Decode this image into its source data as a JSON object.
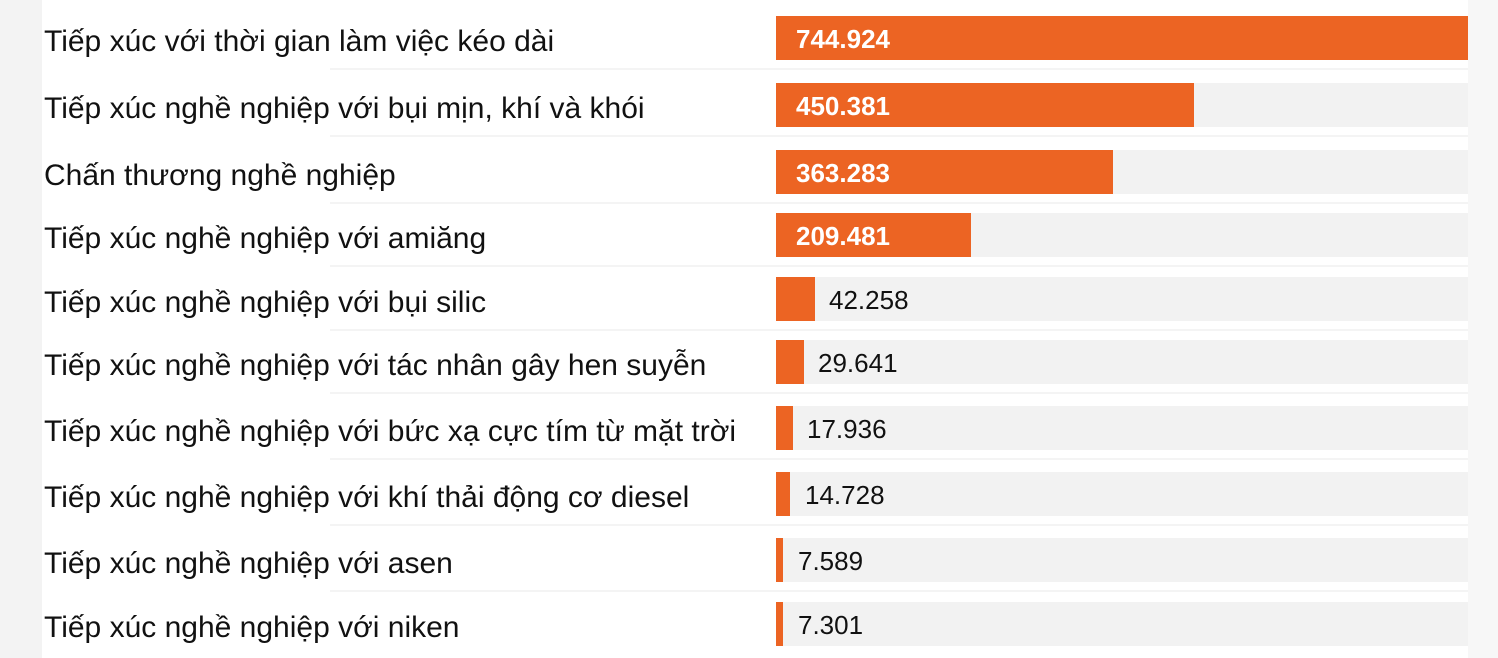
{
  "chart_data": {
    "type": "bar",
    "orientation": "horizontal",
    "categories": [
      "Tiếp xúc với thời gian làm việc kéo dài",
      "Tiếp xúc nghề nghiệp với bụi mịn, khí và khói",
      "Chấn thương nghề nghiệp",
      "Tiếp xúc nghề nghiệp với amiăng",
      "Tiếp xúc nghề nghiệp với bụi silic",
      "Tiếp xúc nghề nghiệp với tác nhân gây hen suyễn",
      "Tiếp xúc nghề nghiệp với bức xạ cực tím từ mặt trời",
      "Tiếp xúc nghề nghiệp với khí thải động cơ diesel",
      "Tiếp xúc nghề nghiệp với asen",
      "Tiếp xúc nghề nghiệp với niken"
    ],
    "values": [
      744924,
      450381,
      363283,
      209481,
      42258,
      29641,
      17936,
      14728,
      7589,
      7301
    ],
    "value_labels": [
      "744.924",
      "450.381",
      "363.283",
      "209.481",
      "42.258",
      "29.641",
      "17.936",
      "14.728",
      "7.589",
      "7.301"
    ],
    "xlim": [
      0,
      744924
    ],
    "grid": false,
    "legend": "none",
    "colors": {
      "bar": "#ec6423",
      "track": "#f2f2f2",
      "label_inside": "#ffffff",
      "label_outside": "#111111"
    }
  }
}
